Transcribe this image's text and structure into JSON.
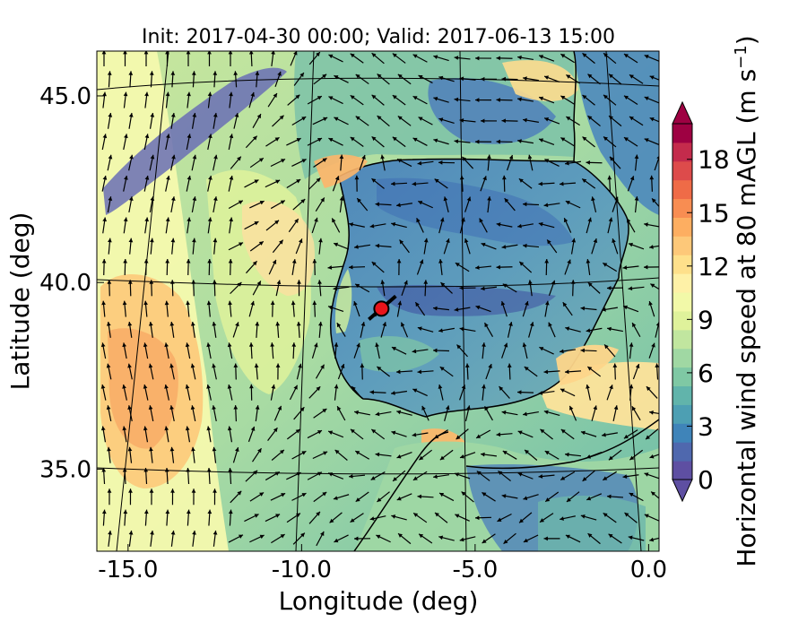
{
  "chart_data": {
    "type": "heatmap",
    "title": "Init: 2017-04-30 00:00; Valid: 2017-06-13 15:00",
    "xlabel": "Longitude (deg)",
    "ylabel": "Latitude (deg)",
    "xlim": [
      -15.9,
      0.3
    ],
    "ylim": [
      32.8,
      46.2
    ],
    "x_ticks": [
      {
        "value": -15.0,
        "label": "-15.0"
      },
      {
        "value": -10.0,
        "label": "-10.0"
      },
      {
        "value": -5.0,
        "label": "-5.0"
      },
      {
        "value": 0.0,
        "label": "0.0"
      }
    ],
    "y_ticks": [
      {
        "value": 35.0,
        "label": "35.0"
      },
      {
        "value": 40.0,
        "label": "40.0"
      },
      {
        "value": 45.0,
        "label": "45.0"
      }
    ],
    "colorbar": {
      "label": "Horizontal wind speed at 80 mAGL",
      "label_units": "(m s",
      "label_exp": "−1",
      "label_close": ")",
      "min": 0,
      "max": 20,
      "ticks": [
        {
          "value": 0,
          "label": "0"
        },
        {
          "value": 3,
          "label": "3"
        },
        {
          "value": 6,
          "label": "6"
        },
        {
          "value": 9,
          "label": "9"
        },
        {
          "value": 12,
          "label": "12"
        },
        {
          "value": 15,
          "label": "15"
        },
        {
          "value": 18,
          "label": "18"
        }
      ],
      "colors": [
        "#5e4fa2",
        "#4f68ae",
        "#3f84b9",
        "#4d9fb3",
        "#61b4ab",
        "#7fc8a4",
        "#a0d8a3",
        "#c1e69f",
        "#dff29b",
        "#f2f9a8",
        "#fef1a7",
        "#fee08b",
        "#fdc879",
        "#fdae61",
        "#f88d52",
        "#ef6b47",
        "#dd4b4b",
        "#c42b4c",
        "#9e0142"
      ],
      "extend_colors": {
        "under": "#5e4fa2",
        "over": "#9e0142"
      }
    },
    "site_marker": {
      "lon": -7.7,
      "lat": 39.3,
      "color": "#e8141b"
    }
  }
}
